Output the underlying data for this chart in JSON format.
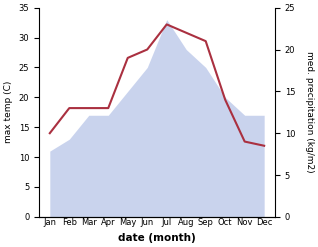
{
  "months": [
    "Jan",
    "Feb",
    "Mar",
    "Apr",
    "May",
    "Jun",
    "Jul",
    "Aug",
    "Sep",
    "Oct",
    "Nov",
    "Dec"
  ],
  "temp": [
    11,
    13,
    17,
    17,
    21,
    25,
    33,
    28,
    25,
    20,
    17,
    17
  ],
  "precip": [
    10,
    13,
    13,
    13,
    19,
    20,
    23,
    22,
    21,
    14,
    9,
    8.5
  ],
  "temp_fill_color": "#b8c5e8",
  "temp_fill_alpha": 0.75,
  "precip_color": "#aa3040",
  "xlabel": "date (month)",
  "ylabel_left": "max temp (C)",
  "ylabel_right": "med. precipitation (kg/m2)",
  "ylim_left": [
    0,
    35
  ],
  "ylim_right": [
    0,
    25
  ],
  "yticks_left": [
    0,
    5,
    10,
    15,
    20,
    25,
    30,
    35
  ],
  "yticks_right": [
    0,
    5,
    10,
    15,
    20,
    25
  ],
  "tick_fontsize": 6,
  "label_fontsize": 6.5,
  "xlabel_fontsize": 7.5,
  "bg_color": "#ffffff"
}
